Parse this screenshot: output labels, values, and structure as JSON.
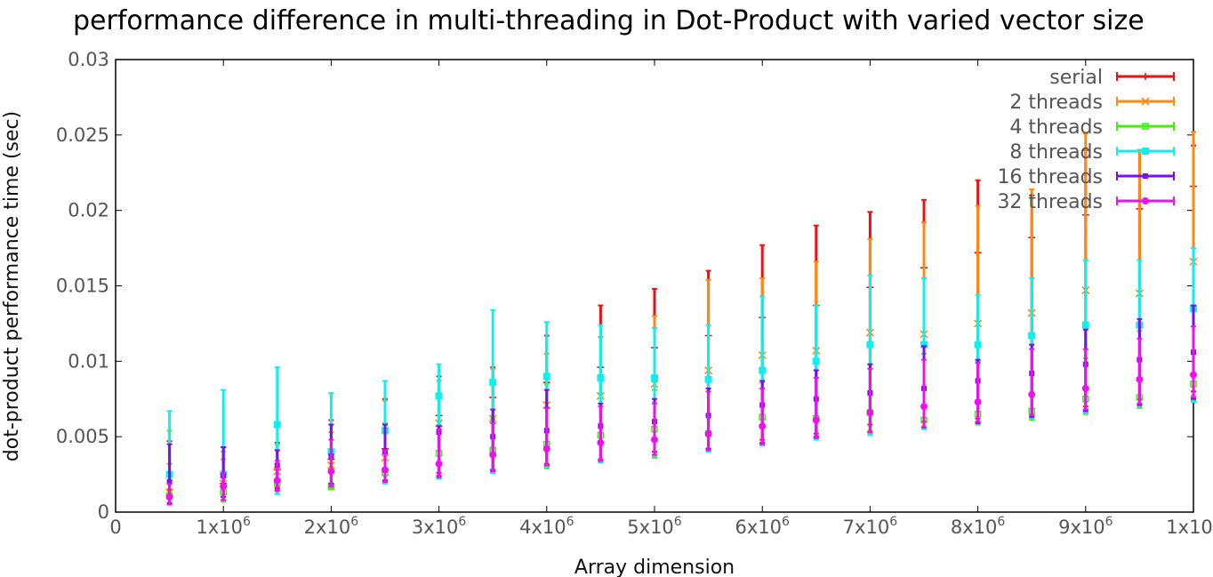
{
  "chart_data": {
    "type": "scatter",
    "style": "error-bars",
    "title": "performance difference in multi-threading in Dot-Product with varied vector size",
    "xlabel": "Array dimension",
    "ylabel": "dot-product performance time (sec)",
    "xlim": [
      0,
      10000000
    ],
    "ylim": [
      0,
      0.03
    ],
    "x_ticks": [
      {
        "value": 0,
        "base": "0",
        "exp": ""
      },
      {
        "value": 1000000,
        "base": "1x10",
        "exp": "6"
      },
      {
        "value": 2000000,
        "base": "2x10",
        "exp": "6"
      },
      {
        "value": 3000000,
        "base": "3x10",
        "exp": "6"
      },
      {
        "value": 4000000,
        "base": "4x10",
        "exp": "6"
      },
      {
        "value": 5000000,
        "base": "5x10",
        "exp": "6"
      },
      {
        "value": 6000000,
        "base": "6x10",
        "exp": "6"
      },
      {
        "value": 7000000,
        "base": "7x10",
        "exp": "6"
      },
      {
        "value": 8000000,
        "base": "8x10",
        "exp": "6"
      },
      {
        "value": 9000000,
        "base": "9x10",
        "exp": "6"
      },
      {
        "value": 10000000,
        "base": "1x10",
        "exp": "7"
      }
    ],
    "y_ticks": [
      {
        "value": 0,
        "label": "0"
      },
      {
        "value": 0.005,
        "label": "0.005"
      },
      {
        "value": 0.01,
        "label": "0.01"
      },
      {
        "value": 0.015,
        "label": "0.015"
      },
      {
        "value": 0.02,
        "label": "0.02"
      },
      {
        "value": 0.025,
        "label": "0.025"
      },
      {
        "value": 0.03,
        "label": "0.03"
      }
    ],
    "grid": false,
    "legend_position": "top-right",
    "x": [
      500000,
      1000000,
      1500000,
      2000000,
      2500000,
      3000000,
      3500000,
      4000000,
      4500000,
      5000000,
      5500000,
      6000000,
      6500000,
      7000000,
      7500000,
      8000000,
      8500000,
      9000000,
      9500000,
      10000000
    ],
    "series": [
      {
        "name": "serial",
        "color": "#ee1111",
        "marker": "plus",
        "values": [
          0.0015,
          0.0019,
          0.0028,
          0.0035,
          0.0042,
          0.0064,
          0.0076,
          0.0086,
          0.0096,
          0.0109,
          0.0117,
          0.0129,
          0.0137,
          0.0149,
          0.0162,
          0.0172,
          0.0182,
          0.0197,
          0.0201,
          0.0216
        ],
        "low": [
          0.0005,
          0.0008,
          0.0015,
          0.0018,
          0.002,
          0.0026,
          0.0028,
          0.0032,
          0.0035,
          0.004,
          0.0042,
          0.0048,
          0.0052,
          0.0058,
          0.006,
          0.0062,
          0.0065,
          0.007,
          0.0075,
          0.008
        ],
        "high": [
          0.0047,
          0.0043,
          0.0046,
          0.0061,
          0.0075,
          0.009,
          0.0096,
          0.0117,
          0.0137,
          0.0148,
          0.016,
          0.0177,
          0.019,
          0.0199,
          0.0207,
          0.022,
          0.021,
          0.024,
          0.024,
          0.0243
        ]
      },
      {
        "name": "2 threads",
        "color": "#ff8811",
        "marker": "cross",
        "values": [
          0.0013,
          0.0019,
          0.0027,
          0.0031,
          0.0036,
          0.0059,
          0.0062,
          0.0071,
          0.0077,
          0.0085,
          0.0094,
          0.0104,
          0.0107,
          0.0119,
          0.0118,
          0.0125,
          0.0132,
          0.0147,
          0.0145,
          0.0166
        ],
        "low": [
          0.0005,
          0.0008,
          0.0014,
          0.0016,
          0.002,
          0.0024,
          0.0027,
          0.003,
          0.0034,
          0.0038,
          0.0041,
          0.0046,
          0.005,
          0.0054,
          0.0057,
          0.006,
          0.0063,
          0.0068,
          0.0072,
          0.0077
        ],
        "high": [
          0.0032,
          0.0035,
          0.0041,
          0.0053,
          0.0074,
          0.0087,
          0.0095,
          0.0105,
          0.0116,
          0.013,
          0.0154,
          0.0155,
          0.0166,
          0.0181,
          0.0192,
          0.0203,
          0.0214,
          0.0251,
          0.024,
          0.0252
        ]
      },
      {
        "name": "4 threads",
        "color": "#44ee11",
        "marker": "square-open",
        "values": [
          0.0011,
          0.0013,
          0.0019,
          0.0017,
          0.0026,
          0.0039,
          0.0041,
          0.0045,
          0.0051,
          0.0055,
          0.0052,
          0.0063,
          0.0062,
          0.0066,
          0.0061,
          0.0065,
          0.0067,
          0.0075,
          0.0076,
          0.0085
        ],
        "low": [
          0.0005,
          0.0007,
          0.0012,
          0.0015,
          0.0019,
          0.0023,
          0.0026,
          0.0029,
          0.0033,
          0.0036,
          0.004,
          0.0045,
          0.0048,
          0.0052,
          0.0055,
          0.0058,
          0.0061,
          0.0065,
          0.0069,
          0.0074
        ],
        "high": [
          0.0054,
          0.004,
          0.0045,
          0.0058,
          0.0059,
          0.0057,
          0.0062,
          0.0085,
          0.0078,
          0.0081,
          0.0082,
          0.0086,
          0.0094,
          0.0098,
          0.0105,
          0.01,
          0.0111,
          0.0102,
          0.012,
          0.0136
        ]
      },
      {
        "name": "8 threads",
        "color": "#11eeee",
        "marker": "square",
        "values": [
          0.0025,
          0.0025,
          0.0058,
          0.004,
          0.0054,
          0.0077,
          0.0086,
          0.009,
          0.0089,
          0.0089,
          0.0088,
          0.0094,
          0.01,
          0.0111,
          0.0111,
          0.0111,
          0.0117,
          0.0124,
          0.0124,
          0.0135
        ],
        "low": [
          0.0005,
          0.001,
          0.0012,
          0.0017,
          0.0019,
          0.0022,
          0.0026,
          0.003,
          0.0033,
          0.0037,
          0.004,
          0.0044,
          0.0048,
          0.0051,
          0.0055,
          0.0059,
          0.0062,
          0.0066,
          0.007,
          0.0073
        ],
        "high": [
          0.0067,
          0.0081,
          0.0096,
          0.0079,
          0.0087,
          0.0098,
          0.0134,
          0.0126,
          0.0124,
          0.0122,
          0.0124,
          0.0143,
          0.0137,
          0.0157,
          0.0155,
          0.0144,
          0.0155,
          0.0167,
          0.0167,
          0.0175
        ]
      },
      {
        "name": "16 threads",
        "color": "#7711ee",
        "marker": "square-small",
        "values": [
          0.002,
          0.0024,
          0.0031,
          0.0037,
          0.004,
          0.0053,
          0.005,
          0.0054,
          0.0057,
          0.006,
          0.0064,
          0.0071,
          0.0075,
          0.0079,
          0.0082,
          0.0087,
          0.0092,
          0.0098,
          0.0101,
          0.0106
        ],
        "low": [
          0.0006,
          0.001,
          0.0016,
          0.0019,
          0.0021,
          0.0024,
          0.0028,
          0.0031,
          0.0034,
          0.0038,
          0.0042,
          0.0046,
          0.005,
          0.0053,
          0.0056,
          0.0059,
          0.0063,
          0.0067,
          0.0071,
          0.0075
        ],
        "high": [
          0.0045,
          0.0043,
          0.0041,
          0.0058,
          0.0058,
          0.0057,
          0.0068,
          0.0081,
          0.0072,
          0.0075,
          0.0082,
          0.0087,
          0.0094,
          0.0098,
          0.011,
          0.0101,
          0.0111,
          0.0121,
          0.0128,
          0.0137
        ]
      },
      {
        "name": "32 threads",
        "color": "#ee11ee",
        "marker": "circle",
        "values": [
          0.001,
          0.0017,
          0.0021,
          0.0027,
          0.0028,
          0.0032,
          0.0038,
          0.0042,
          0.0046,
          0.0048,
          0.0052,
          0.0057,
          0.0061,
          0.0066,
          0.007,
          0.0073,
          0.0078,
          0.0082,
          0.0088,
          0.0091
        ],
        "low": [
          0.0005,
          0.0008,
          0.0014,
          0.0017,
          0.002,
          0.0023,
          0.0027,
          0.0031,
          0.0034,
          0.0038,
          0.0041,
          0.0045,
          0.0049,
          0.0053,
          0.0056,
          0.006,
          0.0064,
          0.0068,
          0.0072,
          0.0076
        ],
        "high": [
          0.0019,
          0.0026,
          0.0034,
          0.0048,
          0.0041,
          0.0055,
          0.0059,
          0.0069,
          0.007,
          0.0072,
          0.008,
          0.0082,
          0.0089,
          0.0095,
          0.0101,
          0.0099,
          0.0108,
          0.0108,
          0.0115,
          0.0123
        ]
      }
    ]
  }
}
